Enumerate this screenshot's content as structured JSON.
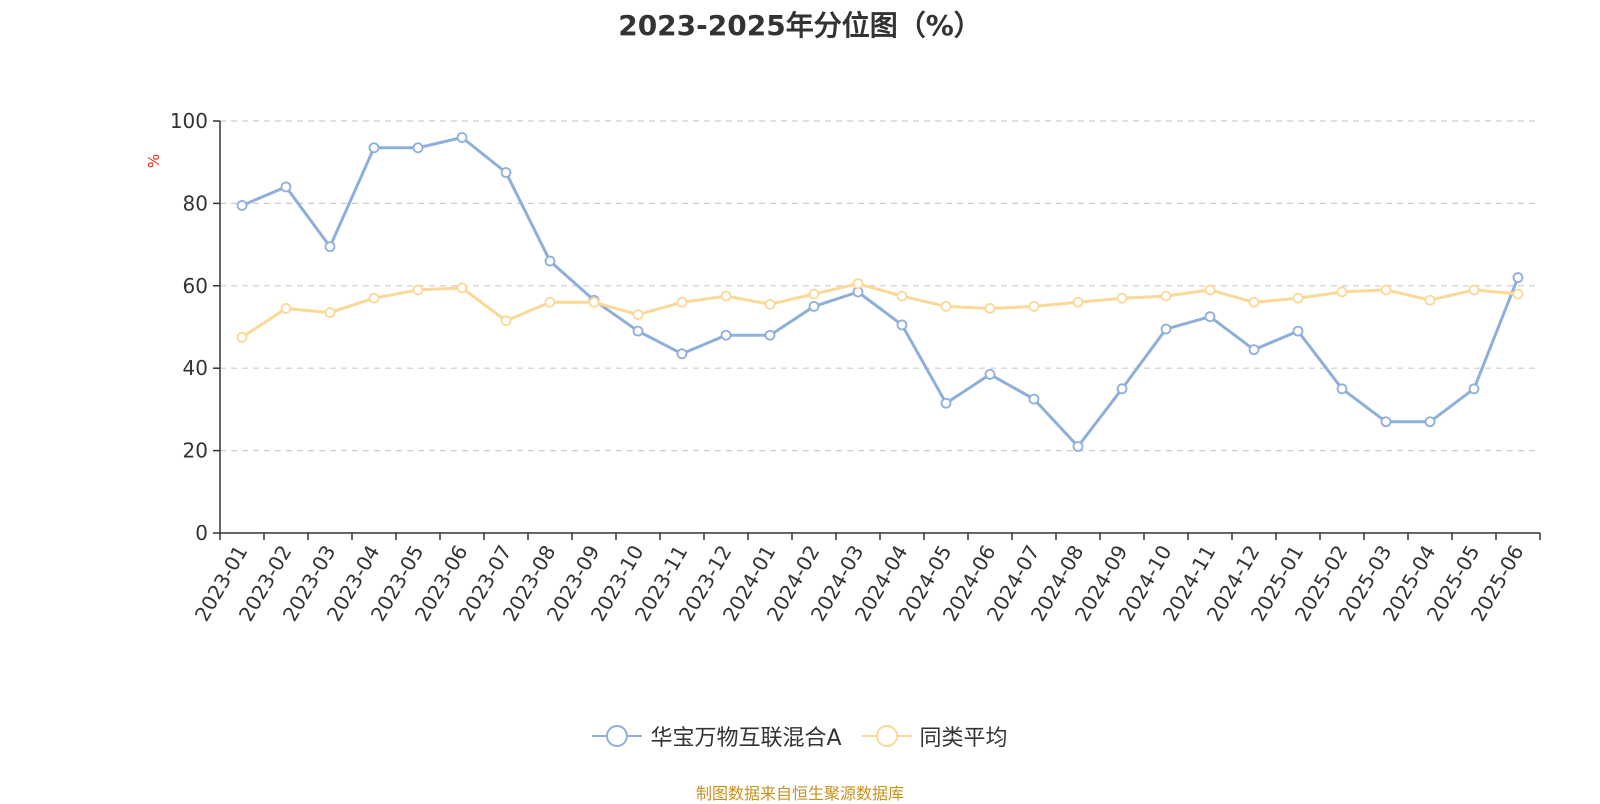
{
  "chart_data": {
    "type": "line",
    "title": "2023-2025年分位图（%）",
    "ylabel": "%",
    "ylim": [
      0,
      100
    ],
    "yticks": [
      0,
      20,
      40,
      60,
      80,
      100
    ],
    "grid": "horizontal-dashed",
    "legend_position": "bottom-center",
    "categories": [
      "2023-01",
      "2023-02",
      "2023-03",
      "2023-04",
      "2023-05",
      "2023-06",
      "2023-07",
      "2023-08",
      "2023-09",
      "2023-10",
      "2023-11",
      "2023-12",
      "2024-01",
      "2024-02",
      "2024-03",
      "2024-04",
      "2024-05",
      "2024-06",
      "2024-07",
      "2024-08",
      "2024-09",
      "2024-10",
      "2024-11",
      "2024-12",
      "2025-01",
      "2025-02",
      "2025-03",
      "2025-04",
      "2025-05",
      "2025-06"
    ],
    "series": [
      {
        "name": "华宝万物互联混合A",
        "color": "#8eafd9",
        "values": [
          79.5,
          84,
          69.5,
          93.5,
          93.5,
          96,
          87.5,
          66,
          56.5,
          49,
          43.5,
          48,
          48,
          55,
          58.5,
          50.5,
          31.5,
          38.5,
          32.5,
          21,
          35,
          49.5,
          52.5,
          44.5,
          49,
          35,
          27,
          27,
          35,
          62
        ]
      },
      {
        "name": "同类平均",
        "color": "#fbd897",
        "values": [
          47.5,
          54.5,
          53.5,
          57,
          59,
          59.5,
          51.5,
          56,
          56,
          53,
          56,
          57.5,
          55.5,
          58,
          60.5,
          57.5,
          55,
          54.5,
          55,
          56,
          57,
          57.5,
          59,
          56,
          57,
          58.5,
          59,
          56.5,
          59,
          58
        ]
      }
    ]
  },
  "footer": "制图数据来自恒生聚源数据库"
}
